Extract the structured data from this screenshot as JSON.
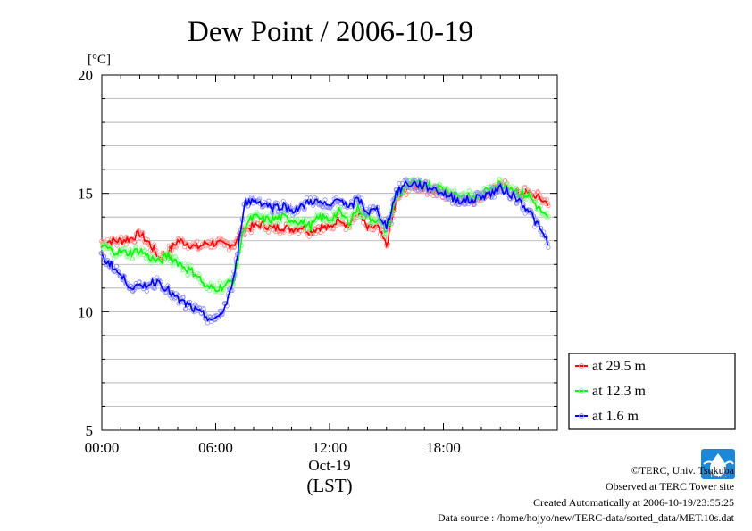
{
  "chart_data": {
    "type": "line",
    "title": "Dew Point / 2006-10-19",
    "ylabel": "[°C]",
    "xlabel": "(LST)",
    "date_label": "Oct-19",
    "ylim": [
      5,
      20
    ],
    "xlim": [
      0,
      24
    ],
    "x_unit": "hour of day",
    "y_ticks": [
      "5",
      "10",
      "15",
      "20"
    ],
    "y_tick_values": [
      5,
      10,
      15,
      20
    ],
    "x_ticks": [
      "00:00",
      "06:00",
      "12:00",
      "18:00"
    ],
    "x_tick_values": [
      0,
      6,
      12,
      18
    ],
    "grid": "horizontal lines every 1 °C",
    "legend_position": "right, bottom",
    "series": [
      {
        "name": "at 29.5 m",
        "color": "#ff0000",
        "x": [
          0,
          0.5,
          1,
          1.5,
          2,
          2.5,
          3,
          3.5,
          4,
          4.5,
          5,
          5.5,
          6,
          6.5,
          7,
          7.5,
          8,
          8.5,
          9,
          9.5,
          10,
          10.5,
          11,
          11.5,
          12,
          12.5,
          13,
          13.5,
          14,
          14.5,
          15,
          15.5,
          16,
          16.5,
          17,
          17.5,
          18,
          18.5,
          19,
          19.5,
          20,
          20.5,
          21,
          21.5,
          22,
          22.5,
          23,
          23.5
        ],
        "y": [
          12.9,
          13.0,
          13.0,
          13.1,
          13.3,
          12.9,
          12.3,
          12.5,
          13.0,
          12.9,
          12.7,
          12.9,
          12.9,
          12.8,
          12.9,
          13.5,
          13.6,
          13.7,
          13.5,
          13.6,
          13.5,
          13.6,
          13.4,
          13.6,
          13.5,
          14.0,
          13.6,
          14.2,
          13.5,
          13.6,
          12.8,
          14.6,
          15.2,
          15.3,
          15.3,
          15.1,
          15.0,
          14.9,
          14.8,
          14.7,
          14.9,
          15.2,
          15.3,
          15.2,
          15.0,
          15.0,
          14.8,
          14.6
        ]
      },
      {
        "name": "at 12.3 m",
        "color": "#00ff00",
        "x": [
          0,
          0.5,
          1,
          1.5,
          2,
          2.5,
          3,
          3.5,
          4,
          4.5,
          5,
          5.5,
          6,
          6.5,
          7,
          7.5,
          8,
          8.5,
          9,
          9.5,
          10,
          10.5,
          11,
          11.5,
          12,
          12.5,
          13,
          13.5,
          14,
          14.5,
          15,
          15.5,
          16,
          16.5,
          17,
          17.5,
          18,
          18.5,
          19,
          19.5,
          20,
          20.5,
          21,
          21.5,
          22,
          22.5,
          23,
          23.5
        ],
        "y": [
          12.8,
          12.6,
          12.5,
          12.5,
          12.6,
          12.3,
          12.1,
          12.4,
          12.1,
          11.8,
          11.6,
          11.0,
          11.0,
          11.1,
          11.4,
          13.6,
          14.0,
          13.9,
          13.9,
          14.0,
          13.9,
          13.8,
          13.6,
          14.0,
          13.9,
          14.2,
          13.8,
          14.4,
          14.0,
          13.9,
          13.4,
          14.8,
          15.3,
          15.4,
          15.4,
          15.3,
          15.2,
          15.0,
          14.9,
          14.8,
          14.9,
          15.3,
          15.4,
          15.3,
          15.0,
          14.9,
          14.4,
          13.9
        ]
      },
      {
        "name": "at 1.6 m",
        "color": "#0000ff",
        "x": [
          0,
          0.5,
          1,
          1.5,
          2,
          2.5,
          3,
          3.5,
          4,
          4.5,
          5,
          5.5,
          6,
          6.5,
          7,
          7.5,
          8,
          8.5,
          9,
          9.5,
          10,
          10.5,
          11,
          11.5,
          12,
          12.5,
          13,
          13.5,
          14,
          14.5,
          15,
          15.5,
          16,
          16.5,
          17,
          17.5,
          18,
          18.5,
          19,
          19.5,
          20,
          20.5,
          21,
          21.5,
          22,
          22.5,
          23,
          23.5
        ],
        "y": [
          12.3,
          12.0,
          11.5,
          11.1,
          11.0,
          11.2,
          11.3,
          10.9,
          10.5,
          10.3,
          10.0,
          9.8,
          9.6,
          10.2,
          11.5,
          14.6,
          14.7,
          14.6,
          14.4,
          14.5,
          14.3,
          14.4,
          14.7,
          14.6,
          14.4,
          14.9,
          14.3,
          14.8,
          14.2,
          14.3,
          13.6,
          15.0,
          15.4,
          15.4,
          15.3,
          15.2,
          15.0,
          14.8,
          14.7,
          14.7,
          14.9,
          15.0,
          15.2,
          15.0,
          14.7,
          14.3,
          13.6,
          12.9
        ]
      }
    ]
  },
  "credits": {
    "copyright": "©TERC, Univ. Tsukuba",
    "site": "Observed at TERC Tower site",
    "created": "Created Automatically at 2006-10-19/23:55:25",
    "source": "Data source : /home/hojyo/new/TERC-data/sorted_data/MET.10s.dat"
  },
  "logo_text": "TERC"
}
